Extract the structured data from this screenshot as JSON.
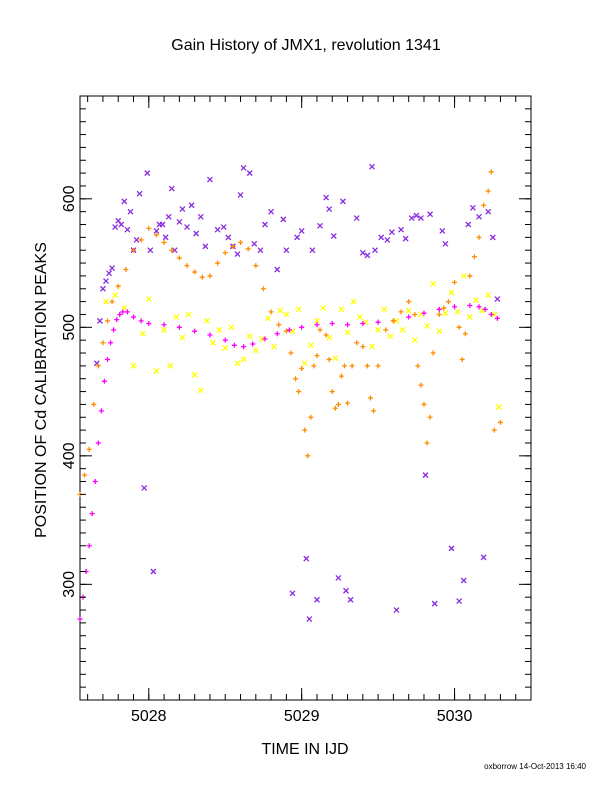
{
  "chart_data": {
    "type": "scatter",
    "title": "Gain History of JMX1, revolution 1341",
    "xlabel": "TIME IN IJD",
    "ylabel": "POSITION OF Cd CALIBRATION PEAKS",
    "xlim": [
      5027.55,
      5030.5
    ],
    "ylim": [
      210,
      680
    ],
    "x_ticks": [
      5028,
      5029,
      5030
    ],
    "x_tick_labels": [
      "5028",
      "5029",
      "5030"
    ],
    "y_ticks": [
      300,
      400,
      500,
      600
    ],
    "y_tick_labels": [
      "300",
      "400",
      "500",
      "600"
    ],
    "grid": false,
    "legend": "none",
    "series": [
      {
        "marker": "x",
        "color": "#8a2be2",
        "points": [
          [
            5027.66,
            472
          ],
          [
            5027.68,
            505
          ],
          [
            5027.7,
            530
          ],
          [
            5027.72,
            536
          ],
          [
            5027.74,
            542
          ],
          [
            5027.76,
            546
          ],
          [
            5027.78,
            578
          ],
          [
            5027.8,
            583
          ],
          [
            5027.82,
            580
          ],
          [
            5027.84,
            598
          ],
          [
            5027.86,
            576
          ],
          [
            5027.88,
            590
          ],
          [
            5027.9,
            560
          ],
          [
            5027.92,
            568
          ],
          [
            5027.94,
            604
          ],
          [
            5027.97,
            375
          ],
          [
            5027.99,
            620
          ],
          [
            5028.01,
            560
          ],
          [
            5028.03,
            310
          ],
          [
            5028.05,
            575
          ],
          [
            5028.07,
            580
          ],
          [
            5028.09,
            580
          ],
          [
            5028.11,
            570
          ],
          [
            5028.13,
            586
          ],
          [
            5028.15,
            608
          ],
          [
            5028.17,
            560
          ],
          [
            5028.2,
            582
          ],
          [
            5028.22,
            592
          ],
          [
            5028.25,
            578
          ],
          [
            5028.28,
            595
          ],
          [
            5028.31,
            573
          ],
          [
            5028.34,
            586
          ],
          [
            5028.37,
            563
          ],
          [
            5028.4,
            615
          ],
          [
            5028.45,
            576
          ],
          [
            5028.49,
            578
          ],
          [
            5028.52,
            570
          ],
          [
            5028.55,
            563
          ],
          [
            5028.58,
            557
          ],
          [
            5028.6,
            603
          ],
          [
            5028.62,
            624
          ],
          [
            5028.66,
            620
          ],
          [
            5028.69,
            565
          ],
          [
            5028.73,
            560
          ],
          [
            5028.76,
            580
          ],
          [
            5028.8,
            590
          ],
          [
            5028.84,
            545
          ],
          [
            5028.88,
            584
          ],
          [
            5028.9,
            560
          ],
          [
            5028.94,
            293
          ],
          [
            5028.97,
            570
          ],
          [
            5029.0,
            575
          ],
          [
            5029.03,
            320
          ],
          [
            5029.05,
            273
          ],
          [
            5029.07,
            560
          ],
          [
            5029.1,
            288
          ],
          [
            5029.12,
            579
          ],
          [
            5029.16,
            601
          ],
          [
            5029.18,
            592
          ],
          [
            5029.21,
            571
          ],
          [
            5029.24,
            305
          ],
          [
            5029.27,
            598
          ],
          [
            5029.29,
            295
          ],
          [
            5029.32,
            288
          ],
          [
            5029.36,
            585
          ],
          [
            5029.4,
            558
          ],
          [
            5029.43,
            556
          ],
          [
            5029.46,
            625
          ],
          [
            5029.48,
            560
          ],
          [
            5029.52,
            570
          ],
          [
            5029.56,
            568
          ],
          [
            5029.59,
            574
          ],
          [
            5029.62,
            280
          ],
          [
            5029.65,
            576
          ],
          [
            5029.68,
            569
          ],
          [
            5029.72,
            585
          ],
          [
            5029.75,
            587
          ],
          [
            5029.78,
            585
          ],
          [
            5029.81,
            385
          ],
          [
            5029.84,
            588
          ],
          [
            5029.87,
            285
          ],
          [
            5029.92,
            575
          ],
          [
            5029.94,
            565
          ],
          [
            5029.98,
            328
          ],
          [
            5030.03,
            287
          ],
          [
            5030.06,
            303
          ],
          [
            5030.09,
            580
          ],
          [
            5030.12,
            593
          ],
          [
            5030.16,
            586
          ],
          [
            5030.19,
            321
          ],
          [
            5030.22,
            590
          ],
          [
            5030.25,
            570
          ],
          [
            5030.28,
            522
          ]
        ]
      },
      {
        "marker": "x",
        "color": "#ffff00",
        "points": [
          [
            5027.72,
            520
          ],
          [
            5027.78,
            525
          ],
          [
            5027.84,
            515
          ],
          [
            5027.9,
            470
          ],
          [
            5027.96,
            495
          ],
          [
            5028.0,
            522
          ],
          [
            5028.05,
            466
          ],
          [
            5028.1,
            498
          ],
          [
            5028.14,
            470
          ],
          [
            5028.18,
            508
          ],
          [
            5028.22,
            492
          ],
          [
            5028.26,
            510
          ],
          [
            5028.3,
            463
          ],
          [
            5028.34,
            451
          ],
          [
            5028.38,
            505
          ],
          [
            5028.42,
            488
          ],
          [
            5028.46,
            498
          ],
          [
            5028.5,
            484
          ],
          [
            5028.54,
            500
          ],
          [
            5028.58,
            472
          ],
          [
            5028.62,
            475
          ],
          [
            5028.66,
            493
          ],
          [
            5028.7,
            482
          ],
          [
            5028.74,
            491
          ],
          [
            5028.78,
            507
          ],
          [
            5028.82,
            485
          ],
          [
            5028.86,
            513
          ],
          [
            5028.9,
            510
          ],
          [
            5028.94,
            497
          ],
          [
            5028.98,
            514
          ],
          [
            5029.02,
            472
          ],
          [
            5029.06,
            486
          ],
          [
            5029.1,
            505
          ],
          [
            5029.14,
            515
          ],
          [
            5029.18,
            492
          ],
          [
            5029.22,
            476
          ],
          [
            5029.26,
            514
          ],
          [
            5029.3,
            496
          ],
          [
            5029.34,
            520
          ],
          [
            5029.38,
            508
          ],
          [
            5029.42,
            504
          ],
          [
            5029.46,
            485
          ],
          [
            5029.5,
            498
          ],
          [
            5029.54,
            514
          ],
          [
            5029.58,
            493
          ],
          [
            5029.62,
            505
          ],
          [
            5029.66,
            498
          ],
          [
            5029.7,
            513
          ],
          [
            5029.74,
            490
          ],
          [
            5029.78,
            510
          ],
          [
            5029.82,
            501
          ],
          [
            5029.86,
            534
          ],
          [
            5029.9,
            497
          ],
          [
            5029.94,
            511
          ],
          [
            5029.98,
            527
          ],
          [
            5030.02,
            512
          ],
          [
            5030.06,
            540
          ],
          [
            5030.1,
            508
          ],
          [
            5030.14,
            521
          ],
          [
            5030.18,
            513
          ],
          [
            5030.22,
            525
          ],
          [
            5030.26,
            510
          ],
          [
            5030.29,
            438
          ]
        ]
      },
      {
        "marker": "+",
        "color": "#ff00ff",
        "points": [
          [
            5027.55,
            273
          ],
          [
            5027.57,
            290
          ],
          [
            5027.59,
            310
          ],
          [
            5027.61,
            330
          ],
          [
            5027.63,
            355
          ],
          [
            5027.65,
            380
          ],
          [
            5027.67,
            410
          ],
          [
            5027.69,
            435
          ],
          [
            5027.71,
            458
          ],
          [
            5027.73,
            475
          ],
          [
            5027.75,
            488
          ],
          [
            5027.77,
            498
          ],
          [
            5027.79,
            506
          ],
          [
            5027.81,
            510
          ],
          [
            5027.83,
            512
          ],
          [
            5027.86,
            512
          ],
          [
            5027.9,
            508
          ],
          [
            5027.95,
            505
          ],
          [
            5028.0,
            503
          ],
          [
            5028.1,
            502
          ],
          [
            5028.2,
            500
          ],
          [
            5028.3,
            497
          ],
          [
            5028.4,
            494
          ],
          [
            5028.5,
            490
          ],
          [
            5028.56,
            486
          ],
          [
            5028.62,
            485
          ],
          [
            5028.68,
            487
          ],
          [
            5028.76,
            491
          ],
          [
            5028.84,
            495
          ],
          [
            5028.92,
            498
          ],
          [
            5029.0,
            500
          ],
          [
            5029.1,
            502
          ],
          [
            5029.2,
            503
          ],
          [
            5029.3,
            502
          ],
          [
            5029.4,
            503
          ],
          [
            5029.5,
            504
          ],
          [
            5029.6,
            505
          ],
          [
            5029.7,
            508
          ],
          [
            5029.8,
            511
          ],
          [
            5029.9,
            514
          ],
          [
            5030.0,
            516
          ],
          [
            5030.1,
            517
          ],
          [
            5030.16,
            516
          ],
          [
            5030.2,
            514
          ],
          [
            5030.24,
            510
          ],
          [
            5030.28,
            507
          ]
        ]
      },
      {
        "marker": "+",
        "color": "#ff8c00",
        "points": [
          [
            5027.55,
            370
          ],
          [
            5027.58,
            385
          ],
          [
            5027.61,
            405
          ],
          [
            5027.64,
            440
          ],
          [
            5027.67,
            470
          ],
          [
            5027.7,
            488
          ],
          [
            5027.73,
            505
          ],
          [
            5027.76,
            520
          ],
          [
            5027.8,
            532
          ],
          [
            5027.85,
            545
          ],
          [
            5027.9,
            560
          ],
          [
            5027.95,
            568
          ],
          [
            5028.0,
            577
          ],
          [
            5028.05,
            572
          ],
          [
            5028.1,
            566
          ],
          [
            5028.15,
            560
          ],
          [
            5028.2,
            554
          ],
          [
            5028.25,
            548
          ],
          [
            5028.3,
            543
          ],
          [
            5028.35,
            539
          ],
          [
            5028.4,
            540
          ],
          [
            5028.45,
            550
          ],
          [
            5028.5,
            558
          ],
          [
            5028.55,
            563
          ],
          [
            5028.6,
            566
          ],
          [
            5028.65,
            561
          ],
          [
            5028.7,
            548
          ],
          [
            5028.75,
            530
          ],
          [
            5028.8,
            512
          ],
          [
            5028.85,
            502
          ],
          [
            5028.9,
            497
          ],
          [
            5028.93,
            480
          ],
          [
            5028.96,
            460
          ],
          [
            5028.98,
            450
          ],
          [
            5029.0,
            468
          ],
          [
            5029.02,
            420
          ],
          [
            5029.04,
            400
          ],
          [
            5029.06,
            430
          ],
          [
            5029.08,
            470
          ],
          [
            5029.1,
            478
          ],
          [
            5029.12,
            498
          ],
          [
            5029.16,
            494
          ],
          [
            5029.18,
            475
          ],
          [
            5029.2,
            450
          ],
          [
            5029.22,
            437
          ],
          [
            5029.24,
            440
          ],
          [
            5029.26,
            462
          ],
          [
            5029.28,
            470
          ],
          [
            5029.3,
            441
          ],
          [
            5029.33,
            470
          ],
          [
            5029.36,
            488
          ],
          [
            5029.4,
            485
          ],
          [
            5029.43,
            470
          ],
          [
            5029.45,
            445
          ],
          [
            5029.47,
            435
          ],
          [
            5029.5,
            470
          ],
          [
            5029.55,
            498
          ],
          [
            5029.6,
            505
          ],
          [
            5029.65,
            512
          ],
          [
            5029.7,
            520
          ],
          [
            5029.74,
            510
          ],
          [
            5029.76,
            470
          ],
          [
            5029.78,
            455
          ],
          [
            5029.8,
            440
          ],
          [
            5029.82,
            410
          ],
          [
            5029.84,
            430
          ],
          [
            5029.86,
            480
          ],
          [
            5029.9,
            510
          ],
          [
            5029.93,
            515
          ],
          [
            5029.96,
            520
          ],
          [
            5030.0,
            535
          ],
          [
            5030.03,
            500
          ],
          [
            5030.05,
            475
          ],
          [
            5030.07,
            495
          ],
          [
            5030.1,
            540
          ],
          [
            5030.13,
            555
          ],
          [
            5030.16,
            570
          ],
          [
            5030.19,
            595
          ],
          [
            5030.22,
            606
          ],
          [
            5030.24,
            621
          ],
          [
            5030.26,
            420
          ],
          [
            5030.3,
            426
          ]
        ]
      }
    ]
  },
  "footer": {
    "stamp": "oxborrow 14-Oct-2013 16:40"
  }
}
